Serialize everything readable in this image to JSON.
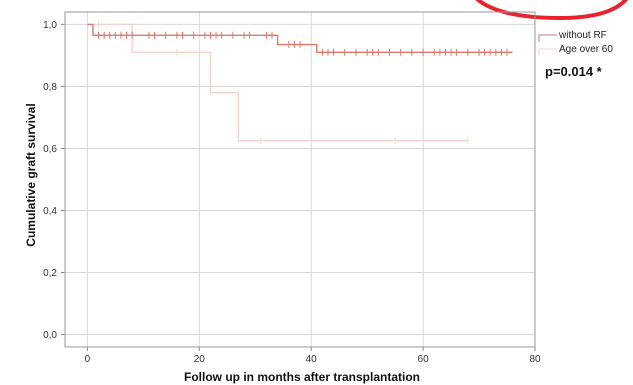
{
  "chart_data": {
    "type": "line",
    "xlabel": "Follow up in months after transplantation",
    "ylabel": "Cumulative graft survival",
    "xlim": [
      -4,
      80
    ],
    "ylim": [
      -0.04,
      1.04
    ],
    "x_ticks": [
      0,
      20,
      40,
      60,
      80
    ],
    "y_ticks": [
      0.0,
      0.2,
      0.4,
      0.6,
      0.8,
      1.0
    ],
    "x_tick_labels": [
      "0",
      "20",
      "40",
      "60",
      "80"
    ],
    "y_tick_labels": [
      "0,0",
      "0,2",
      "0,4",
      "0,6",
      "0,8",
      "1,0"
    ],
    "grid": true,
    "legend_position": "top-right",
    "annotation": "p=0.014 *",
    "series": [
      {
        "name": "without RF",
        "color": "#e0776a",
        "steps": [
          [
            0,
            1.0
          ],
          [
            1,
            0.965
          ],
          [
            34,
            0.935
          ],
          [
            41,
            0.91
          ],
          [
            76,
            0.91
          ]
        ],
        "censored": [
          [
            2,
            0.965
          ],
          [
            3,
            0.965
          ],
          [
            4,
            0.965
          ],
          [
            5,
            0.965
          ],
          [
            6,
            0.965
          ],
          [
            7,
            0.965
          ],
          [
            8,
            0.965
          ],
          [
            11,
            0.965
          ],
          [
            12,
            0.965
          ],
          [
            14,
            0.965
          ],
          [
            16,
            0.965
          ],
          [
            17,
            0.965
          ],
          [
            19,
            0.965
          ],
          [
            21,
            0.965
          ],
          [
            22,
            0.965
          ],
          [
            23,
            0.965
          ],
          [
            24,
            0.965
          ],
          [
            26,
            0.965
          ],
          [
            28,
            0.965
          ],
          [
            29,
            0.965
          ],
          [
            32,
            0.965
          ],
          [
            33,
            0.965
          ],
          [
            36,
            0.935
          ],
          [
            37,
            0.935
          ],
          [
            38,
            0.935
          ],
          [
            42,
            0.91
          ],
          [
            43,
            0.91
          ],
          [
            44,
            0.91
          ],
          [
            46,
            0.91
          ],
          [
            48,
            0.91
          ],
          [
            50,
            0.91
          ],
          [
            51,
            0.91
          ],
          [
            52,
            0.91
          ],
          [
            54,
            0.91
          ],
          [
            56,
            0.91
          ],
          [
            58,
            0.91
          ],
          [
            60,
            0.91
          ],
          [
            62,
            0.91
          ],
          [
            63,
            0.91
          ],
          [
            64,
            0.91
          ],
          [
            65,
            0.91
          ],
          [
            66,
            0.91
          ],
          [
            68,
            0.91
          ],
          [
            70,
            0.91
          ],
          [
            71,
            0.91
          ],
          [
            72,
            0.91
          ],
          [
            73,
            0.91
          ],
          [
            74,
            0.91
          ],
          [
            75,
            0.91
          ]
        ]
      },
      {
        "name": "Age over 60",
        "color": "#f6d3c8",
        "steps": [
          [
            0,
            1.0
          ],
          [
            8,
            0.91
          ],
          [
            22,
            0.78
          ],
          [
            27,
            0.625
          ],
          [
            68,
            0.625
          ]
        ],
        "censored": [
          [
            2,
            1.0
          ],
          [
            16,
            0.91
          ],
          [
            31,
            0.625
          ],
          [
            55,
            0.625
          ],
          [
            68,
            0.625
          ]
        ]
      }
    ]
  }
}
